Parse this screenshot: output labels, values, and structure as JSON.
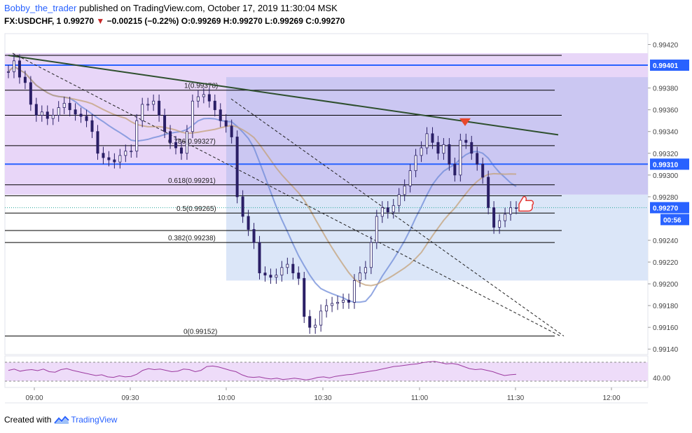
{
  "header": {
    "author": "Bobby_the_trader",
    "published": "published on TradingView.com, October 17, 2019 11:30:04 MSK",
    "symbol": "FX:USDCHF, 1",
    "last": "0.99270",
    "change": "−0.00215 (−0.22%)",
    "ohlc": "O:0.99269 H:0.99270 L:0.99269 C:0.99270"
  },
  "footer": {
    "created_with": "Created with",
    "brand": "TradingView"
  },
  "colors": {
    "up_candle": "#ffffff",
    "down_candle": "#2a1f66",
    "wick": "#2a1f66",
    "ema_blue": "#6f8bd8",
    "ema_brown": "#c4a27a",
    "trendline": "#2e4f2e",
    "horizontal_level": "#2962ff",
    "price_badge": "#2962ff",
    "arrow_marker": "#e8472c",
    "upper_zone": "#e8d6f8",
    "mid_zone": "#cbc7f2",
    "lower_zone": "#dbe6f8",
    "rsi_band": "#eedcf9",
    "rsi_line": "#9c3aa0"
  },
  "chart_data": {
    "type": "candlestick",
    "price_axis": {
      "range": [
        0.99135,
        0.9943
      ],
      "ticks": [
        "0.99420",
        "0.99380",
        "0.99360",
        "0.99340",
        "0.99320",
        "0.99300",
        "0.99280",
        "0.99240",
        "0.99220",
        "0.99200",
        "0.99180",
        "0.99160",
        "0.99140"
      ]
    },
    "time_axis": {
      "labels": [
        "09:00",
        "09:30",
        "10:00",
        "10:30",
        "11:00",
        "11:30",
        "12:00"
      ]
    },
    "price_badges": [
      {
        "label": "0.99401",
        "price": 0.99401
      },
      {
        "label": "0.99310",
        "price": 0.9931
      },
      {
        "label": "0.99270",
        "price": 0.9927
      }
    ],
    "countdown": "00:56",
    "fib_levels": [
      {
        "label": "1(0.99378)",
        "price": 0.99378
      },
      {
        "label": "0.786(0.99327)",
        "price": 0.99327
      },
      {
        "label": "0.618(0.99291)",
        "price": 0.99291
      },
      {
        "label": "0.5(0.99265)",
        "price": 0.99265
      },
      {
        "label": "0.382(0.99238)",
        "price": 0.99238
      },
      {
        "label": "0(0.99152)",
        "price": 0.99152
      }
    ],
    "extra_levels": [
      0.9941,
      0.99355,
      0.99281,
      0.99249
    ],
    "horizontal_lines": [
      0.99401,
      0.9931
    ],
    "close_series": [
      0.99395,
      0.99405,
      0.9939,
      0.99385,
      0.99365,
      0.99355,
      0.99358,
      0.99352,
      0.99355,
      0.99362,
      0.99366,
      0.9936,
      0.99356,
      0.99354,
      0.9935,
      0.9934,
      0.9932,
      0.99316,
      0.99314,
      0.99312,
      0.99318,
      0.99322,
      0.99322,
      0.9935,
      0.99365,
      0.99365,
      0.99368,
      0.99355,
      0.9934,
      0.9933,
      0.99325,
      0.9932,
      0.9934,
      0.99368,
      0.99372,
      0.99374,
      0.99368,
      0.9936,
      0.9935,
      0.99345,
      0.99335,
      0.9928,
      0.99262,
      0.9925,
      0.99238,
      0.9921,
      0.99208,
      0.99206,
      0.99208,
      0.99215,
      0.99218,
      0.9921,
      0.99205,
      0.9917,
      0.9916,
      0.99162,
      0.99175,
      0.9918,
      0.99182,
      0.99183,
      0.99185,
      0.99183,
      0.99203,
      0.9921,
      0.99215,
      0.99238,
      0.99262,
      0.9927,
      0.99266,
      0.99272,
      0.99282,
      0.9929,
      0.99304,
      0.99318,
      0.99325,
      0.99338,
      0.9933,
      0.9932,
      0.99328,
      0.9931,
      0.993,
      0.99332,
      0.9933,
      0.9932,
      0.9931,
      0.99298,
      0.9927,
      0.99252,
      0.99258,
      0.99264,
      0.9927,
      0.9927
    ],
    "rsi": {
      "level": "40.00"
    }
  }
}
